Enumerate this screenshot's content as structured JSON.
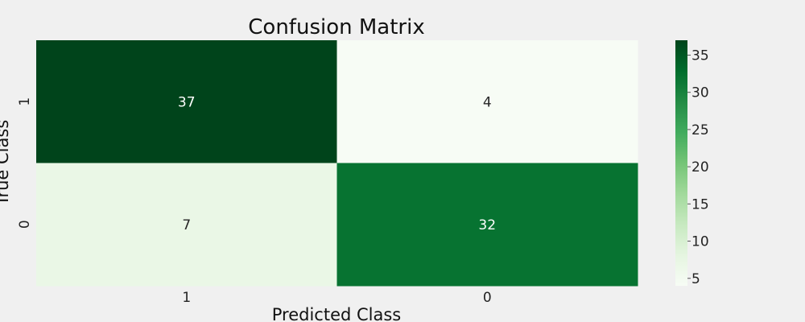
{
  "chart_data": {
    "type": "heatmap",
    "title": "Confusion Matrix",
    "xlabel": "Predicted Class",
    "ylabel": "True Class",
    "x_categories": [
      "1",
      "0"
    ],
    "y_categories": [
      "1",
      "0"
    ],
    "values": [
      [
        37,
        4
      ],
      [
        7,
        32
      ]
    ],
    "colormap": "Greens",
    "colorbar": {
      "min": 4,
      "max": 37,
      "ticks": [
        5,
        10,
        15,
        20,
        25,
        30,
        35
      ],
      "tick_labels": [
        "5",
        "10",
        "15",
        "20",
        "25",
        "30",
        "35"
      ]
    }
  },
  "colors": {
    "background": "#f0f0f0",
    "scale": [
      "#f7fcf5",
      "#e5f5e0",
      "#c7e9c0",
      "#a1d99b",
      "#74c476",
      "#41ab5d",
      "#238b45",
      "#006d2c",
      "#00441b"
    ],
    "text_dark": "#262626",
    "text_light": "#ffffff"
  }
}
